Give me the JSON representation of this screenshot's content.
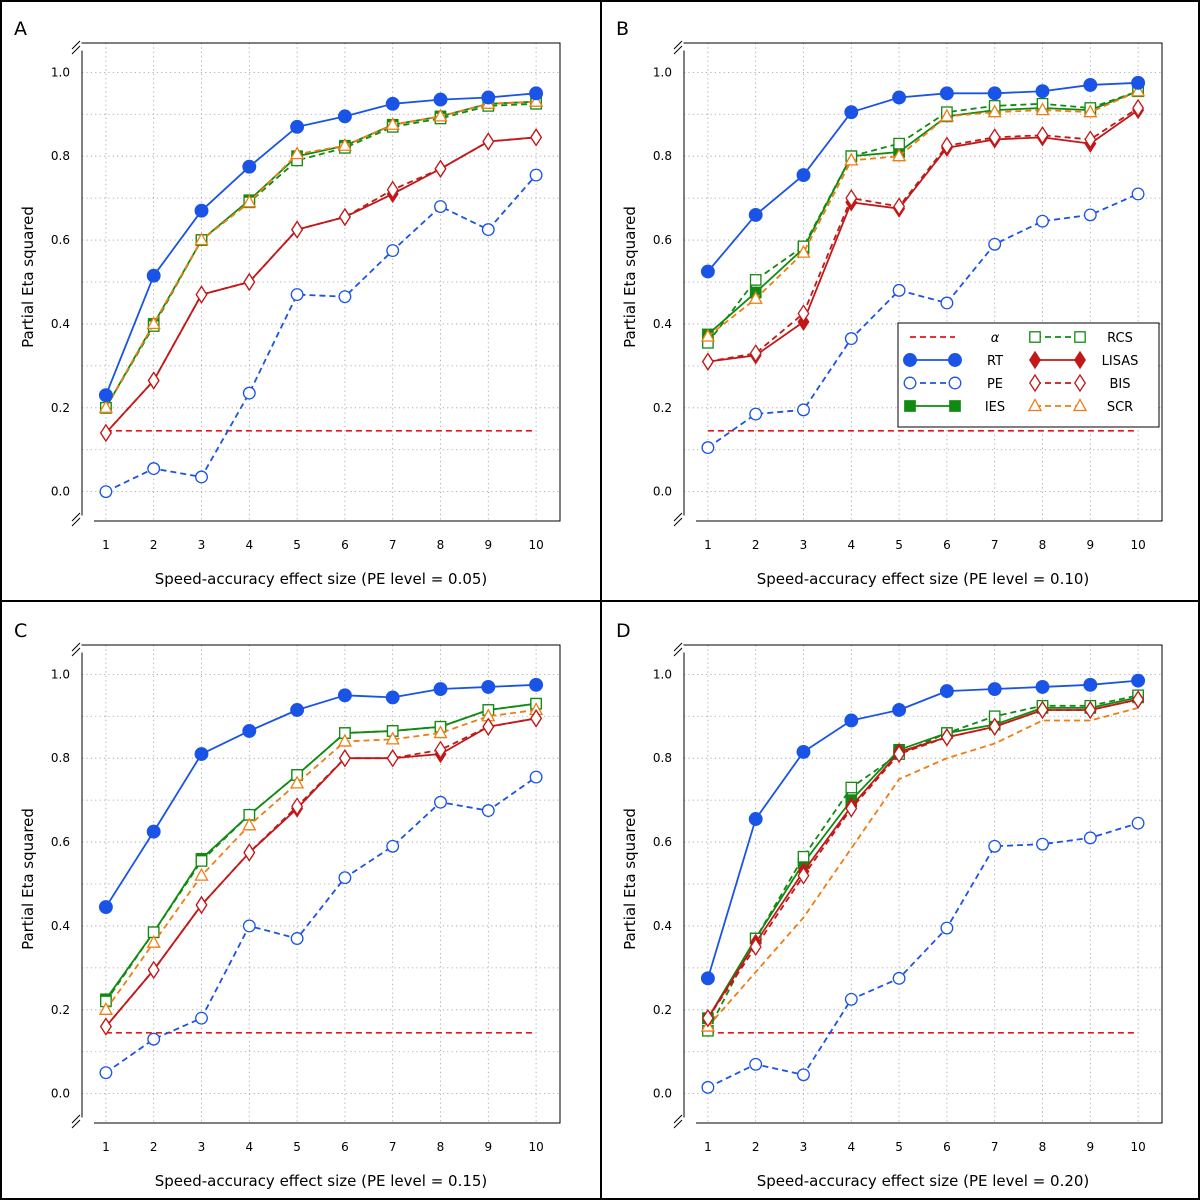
{
  "figure": {
    "ylabel": "Partial Eta squared",
    "x_ticks": [
      "1",
      "2",
      "3",
      "4",
      "5",
      "6",
      "7",
      "8",
      "9",
      "10"
    ],
    "y_ticks": [
      "0.0",
      "0.2",
      "0.4",
      "0.6",
      "0.8",
      "1.0"
    ]
  },
  "legend": {
    "entries": [
      {
        "key": "alpha",
        "label": "α"
      },
      {
        "key": "RT",
        "label": "RT"
      },
      {
        "key": "PE",
        "label": "PE"
      },
      {
        "key": "IES",
        "label": "IES"
      },
      {
        "key": "RCS",
        "label": "RCS"
      },
      {
        "key": "LISAS",
        "label": "LISAS"
      },
      {
        "key": "BIS",
        "label": "BIS"
      },
      {
        "key": "SCR",
        "label": "SCR"
      }
    ]
  },
  "series_styles": {
    "alpha": {
      "color": "#e8141b",
      "dash": true,
      "marker": "none"
    },
    "RT": {
      "color": "#1a54e6",
      "dash": false,
      "marker": "circle",
      "filled": true
    },
    "PE": {
      "color": "#1a54e6",
      "dash": true,
      "marker": "circle",
      "filled": false
    },
    "IES": {
      "color": "#128a12",
      "dash": false,
      "marker": "square",
      "filled": true
    },
    "RCS": {
      "color": "#128a12",
      "dash": true,
      "marker": "square",
      "filled": false
    },
    "LISAS": {
      "color": "#c21818",
      "dash": false,
      "marker": "diamond",
      "filled": true
    },
    "BIS": {
      "color": "#c21818",
      "dash": true,
      "marker": "diamond",
      "filled": false
    },
    "SCR": {
      "color": "#f07d12",
      "dash": true,
      "marker": "triangle",
      "filled": false
    }
  },
  "chart_data": [
    {
      "type": "line",
      "panel": "A",
      "xlabel": "Speed-accuracy effect size (PE level = 0.05)",
      "ylabel": "Partial Eta squared",
      "x": [
        1,
        2,
        3,
        4,
        5,
        6,
        7,
        8,
        9,
        10
      ],
      "xlim": [
        0.5,
        10.5
      ],
      "ylim": [
        -0.07,
        1.07
      ],
      "alpha_level": 0.145,
      "series": [
        {
          "name": "IES",
          "values": [
            0.2,
            0.4,
            0.6,
            0.695,
            0.8,
            0.825,
            0.875,
            0.895,
            0.925,
            0.93
          ]
        },
        {
          "name": "RCS",
          "values": [
            0.2,
            0.395,
            0.6,
            0.69,
            0.79,
            0.82,
            0.87,
            0.89,
            0.92,
            0.925
          ]
        },
        {
          "name": "SCR",
          "values": [
            0.2,
            0.4,
            0.6,
            0.69,
            0.805,
            0.825,
            0.875,
            0.895,
            0.925,
            0.93
          ]
        },
        {
          "name": "LISAS",
          "values": [
            0.14,
            0.265,
            0.47,
            0.5,
            0.625,
            0.655,
            0.71,
            0.77,
            0.835,
            0.845
          ]
        },
        {
          "name": "BIS",
          "values": [
            0.14,
            0.265,
            0.47,
            0.5,
            0.625,
            0.655,
            0.72,
            0.77,
            0.835,
            0.845
          ]
        },
        {
          "name": "PE",
          "values": [
            0.0,
            0.055,
            0.035,
            0.235,
            0.47,
            0.465,
            0.575,
            0.68,
            0.625,
            0.755
          ]
        },
        {
          "name": "RT",
          "values": [
            0.23,
            0.515,
            0.67,
            0.775,
            0.87,
            0.895,
            0.925,
            0.935,
            0.94,
            0.95
          ]
        }
      ]
    },
    {
      "type": "line",
      "panel": "B",
      "xlabel": "Speed-accuracy effect size (PE level = 0.10)",
      "ylabel": "Partial Eta squared",
      "x": [
        1,
        2,
        3,
        4,
        5,
        6,
        7,
        8,
        9,
        10
      ],
      "xlim": [
        0.5,
        10.5
      ],
      "ylim": [
        -0.07,
        1.07
      ],
      "alpha_level": 0.145,
      "series": [
        {
          "name": "IES",
          "values": [
            0.375,
            0.475,
            0.58,
            0.8,
            0.81,
            0.895,
            0.91,
            0.915,
            0.91,
            0.955
          ]
        },
        {
          "name": "RCS",
          "values": [
            0.355,
            0.505,
            0.585,
            0.8,
            0.83,
            0.905,
            0.92,
            0.925,
            0.915,
            0.955
          ]
        },
        {
          "name": "SCR",
          "values": [
            0.37,
            0.46,
            0.57,
            0.79,
            0.8,
            0.895,
            0.905,
            0.91,
            0.905,
            0.955
          ]
        },
        {
          "name": "LISAS",
          "values": [
            0.31,
            0.325,
            0.405,
            0.69,
            0.675,
            0.82,
            0.84,
            0.845,
            0.83,
            0.91
          ]
        },
        {
          "name": "BIS",
          "values": [
            0.31,
            0.33,
            0.425,
            0.7,
            0.68,
            0.825,
            0.845,
            0.85,
            0.84,
            0.915
          ]
        },
        {
          "name": "PE",
          "values": [
            0.105,
            0.185,
            0.195,
            0.365,
            0.48,
            0.45,
            0.59,
            0.645,
            0.66,
            0.71
          ]
        },
        {
          "name": "RT",
          "values": [
            0.525,
            0.66,
            0.755,
            0.905,
            0.94,
            0.95,
            0.95,
            0.955,
            0.97,
            0.975
          ]
        }
      ]
    },
    {
      "type": "line",
      "panel": "C",
      "xlabel": "Speed-accuracy effect size (PE level = 0.15)",
      "ylabel": "Partial Eta squared",
      "x": [
        1,
        2,
        3,
        4,
        5,
        6,
        7,
        8,
        9,
        10
      ],
      "xlim": [
        0.5,
        10.5
      ],
      "ylim": [
        -0.07,
        1.07
      ],
      "alpha_level": 0.145,
      "series": [
        {
          "name": "IES",
          "values": [
            0.225,
            0.385,
            0.56,
            0.665,
            0.76,
            0.86,
            0.865,
            0.875,
            0.915,
            0.93
          ]
        },
        {
          "name": "RCS",
          "values": [
            0.22,
            0.385,
            0.555,
            0.665,
            0.76,
            0.86,
            0.865,
            0.875,
            0.915,
            0.93
          ]
        },
        {
          "name": "SCR",
          "values": [
            0.2,
            0.36,
            0.52,
            0.64,
            0.74,
            0.84,
            0.845,
            0.86,
            0.9,
            0.915
          ]
        },
        {
          "name": "LISAS",
          "values": [
            0.16,
            0.295,
            0.45,
            0.575,
            0.68,
            0.8,
            0.8,
            0.81,
            0.875,
            0.895
          ]
        },
        {
          "name": "BIS",
          "values": [
            0.16,
            0.295,
            0.45,
            0.575,
            0.685,
            0.8,
            0.8,
            0.82,
            0.875,
            0.895
          ]
        },
        {
          "name": "PE",
          "values": [
            0.05,
            0.13,
            0.18,
            0.4,
            0.37,
            0.515,
            0.59,
            0.695,
            0.675,
            0.755
          ]
        },
        {
          "name": "RT",
          "values": [
            0.445,
            0.625,
            0.81,
            0.865,
            0.915,
            0.95,
            0.945,
            0.965,
            0.97,
            0.975
          ]
        }
      ]
    },
    {
      "type": "line",
      "panel": "D",
      "xlabel": "Speed-accuracy effect size (PE level = 0.20)",
      "ylabel": "Partial Eta squared",
      "x": [
        1,
        2,
        3,
        4,
        5,
        6,
        7,
        8,
        9,
        10
      ],
      "xlim": [
        0.5,
        10.5
      ],
      "ylim": [
        -0.07,
        1.07
      ],
      "alpha_level": 0.145,
      "series": [
        {
          "name": "IES",
          "values": [
            0.18,
            0.37,
            0.55,
            0.7,
            0.82,
            0.86,
            0.88,
            0.92,
            0.92,
            0.945
          ]
        },
        {
          "name": "RCS",
          "values": [
            0.15,
            0.37,
            0.565,
            0.73,
            0.81,
            0.86,
            0.9,
            0.925,
            0.925,
            0.95
          ]
        },
        {
          "name": "SCR",
          "values": [
            0.16,
            0.29,
            0.42,
            0.585,
            0.75,
            0.8,
            0.835,
            0.89,
            0.89,
            0.92
          ]
        },
        {
          "name": "LISAS",
          "values": [
            0.18,
            0.36,
            0.53,
            0.685,
            0.815,
            0.85,
            0.875,
            0.915,
            0.915,
            0.94
          ]
        },
        {
          "name": "BIS",
          "values": [
            0.18,
            0.35,
            0.52,
            0.68,
            0.81,
            0.85,
            0.875,
            0.915,
            0.915,
            0.94
          ]
        },
        {
          "name": "PE",
          "values": [
            0.015,
            0.07,
            0.045,
            0.225,
            0.275,
            0.395,
            0.59,
            0.595,
            0.61,
            0.645
          ]
        },
        {
          "name": "RT",
          "values": [
            0.275,
            0.655,
            0.815,
            0.89,
            0.915,
            0.96,
            0.965,
            0.97,
            0.975,
            0.985
          ]
        }
      ]
    }
  ]
}
